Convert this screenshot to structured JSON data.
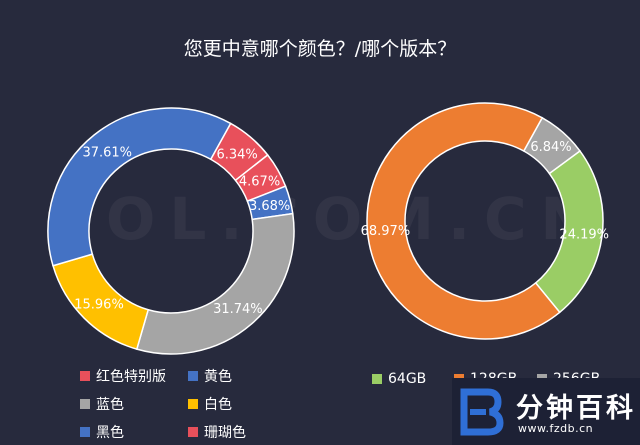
{
  "title": "您更中意哪个颜色？/哪个版本？",
  "watermark": "ZOL.COM.CN",
  "brand": {
    "name": "分钟百科",
    "url": "www.fzdb.cn"
  },
  "chart_data": [
    {
      "type": "pie",
      "subtype": "donut",
      "title": "",
      "slices": [
        {
          "label": "红色特别版",
          "value": 6.34,
          "display": "6.34%",
          "color": "#e8505b"
        },
        {
          "label": "珊瑚色",
          "value": 4.67,
          "display": "4.67%",
          "color": "#e8505b"
        },
        {
          "label": "黄色",
          "value": 3.68,
          "display": "3.68%",
          "color": "#4472c4"
        },
        {
          "label": "蓝色",
          "value": 31.74,
          "display": "31.74%",
          "color": "#a5a5a5"
        },
        {
          "label": "白色",
          "value": 15.96,
          "display": "15.96%",
          "color": "#ffc000"
        },
        {
          "label": "黑色",
          "value": 37.61,
          "display": "37.61%",
          "color": "#4472c4"
        }
      ],
      "legend": [
        {
          "label": "红色特别版",
          "color": "#e8505b"
        },
        {
          "label": "黄色",
          "color": "#4472c4"
        },
        {
          "label": "蓝色",
          "color": "#a5a5a5"
        },
        {
          "label": "白色",
          "color": "#ffc000"
        },
        {
          "label": "黑色",
          "color": "#4472c4"
        },
        {
          "label": "珊瑚色",
          "color": "#e8505b"
        }
      ],
      "legend_position": "bottom"
    },
    {
      "type": "pie",
      "subtype": "donut",
      "title": "",
      "slices": [
        {
          "label": "256GB",
          "value": 6.84,
          "display": "6.84%",
          "color": "#a5a5a5"
        },
        {
          "label": "64GB",
          "value": 24.19,
          "display": "24.19%",
          "color": "#9acd65"
        },
        {
          "label": "128GB",
          "value": 68.97,
          "display": "68.97%",
          "color": "#ed7d31"
        }
      ],
      "legend": [
        {
          "label": "64GB",
          "color": "#9acd65"
        },
        {
          "label": "128GB",
          "color": "#ed7d31"
        },
        {
          "label": "256GB",
          "color": "#a5a5a5"
        }
      ],
      "legend_position": "bottom"
    }
  ]
}
